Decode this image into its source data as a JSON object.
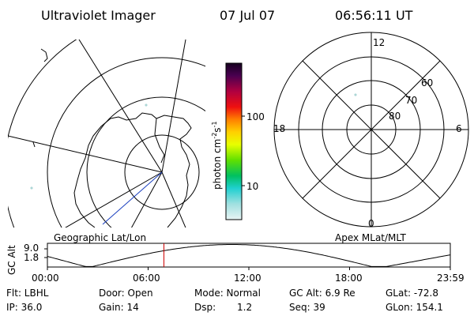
{
  "header": {
    "title": "Ultraviolet Imager",
    "date": "07 Jul 07",
    "time": "06:56:11 UT"
  },
  "colorbar": {
    "label": "photon cm",
    "exp1": "-2",
    "mid": "s",
    "exp2": "-1",
    "ticks": [
      "100",
      "10"
    ]
  },
  "polar": {
    "mlt_labels": {
      "top": "12",
      "left": "18",
      "right": "6",
      "bottom": "0"
    },
    "lat_labels": [
      "60",
      "70",
      "80"
    ]
  },
  "labels": {
    "geo": "Geographic Lat/Lon",
    "apex": "Apex MLat/MLT"
  },
  "alt_plot": {
    "ylabel": "GC Alt",
    "yticks": [
      "9.0",
      "1.8"
    ],
    "xticks": [
      "00:00",
      "06:00",
      "12:00",
      "18:00",
      "23:59"
    ],
    "current_time_hours": 6.94
  },
  "info": {
    "row1": {
      "flt": "Flt: LBHL",
      "door": "Door: Open",
      "mode": "Mode: Normal",
      "gcalt": "GC Alt: 6.9 Re",
      "glat": "GLat: -72.8"
    },
    "row2": {
      "ip": "IP: 36.0",
      "gain": "Gain: 14",
      "dsp_label": "Dsp:",
      "dsp_value": "1.2",
      "seq": "Seq: 39",
      "glon": "GLon: 154.1"
    }
  },
  "colors": {
    "time_marker": "#cc0000",
    "track": "#1a3fbf"
  }
}
